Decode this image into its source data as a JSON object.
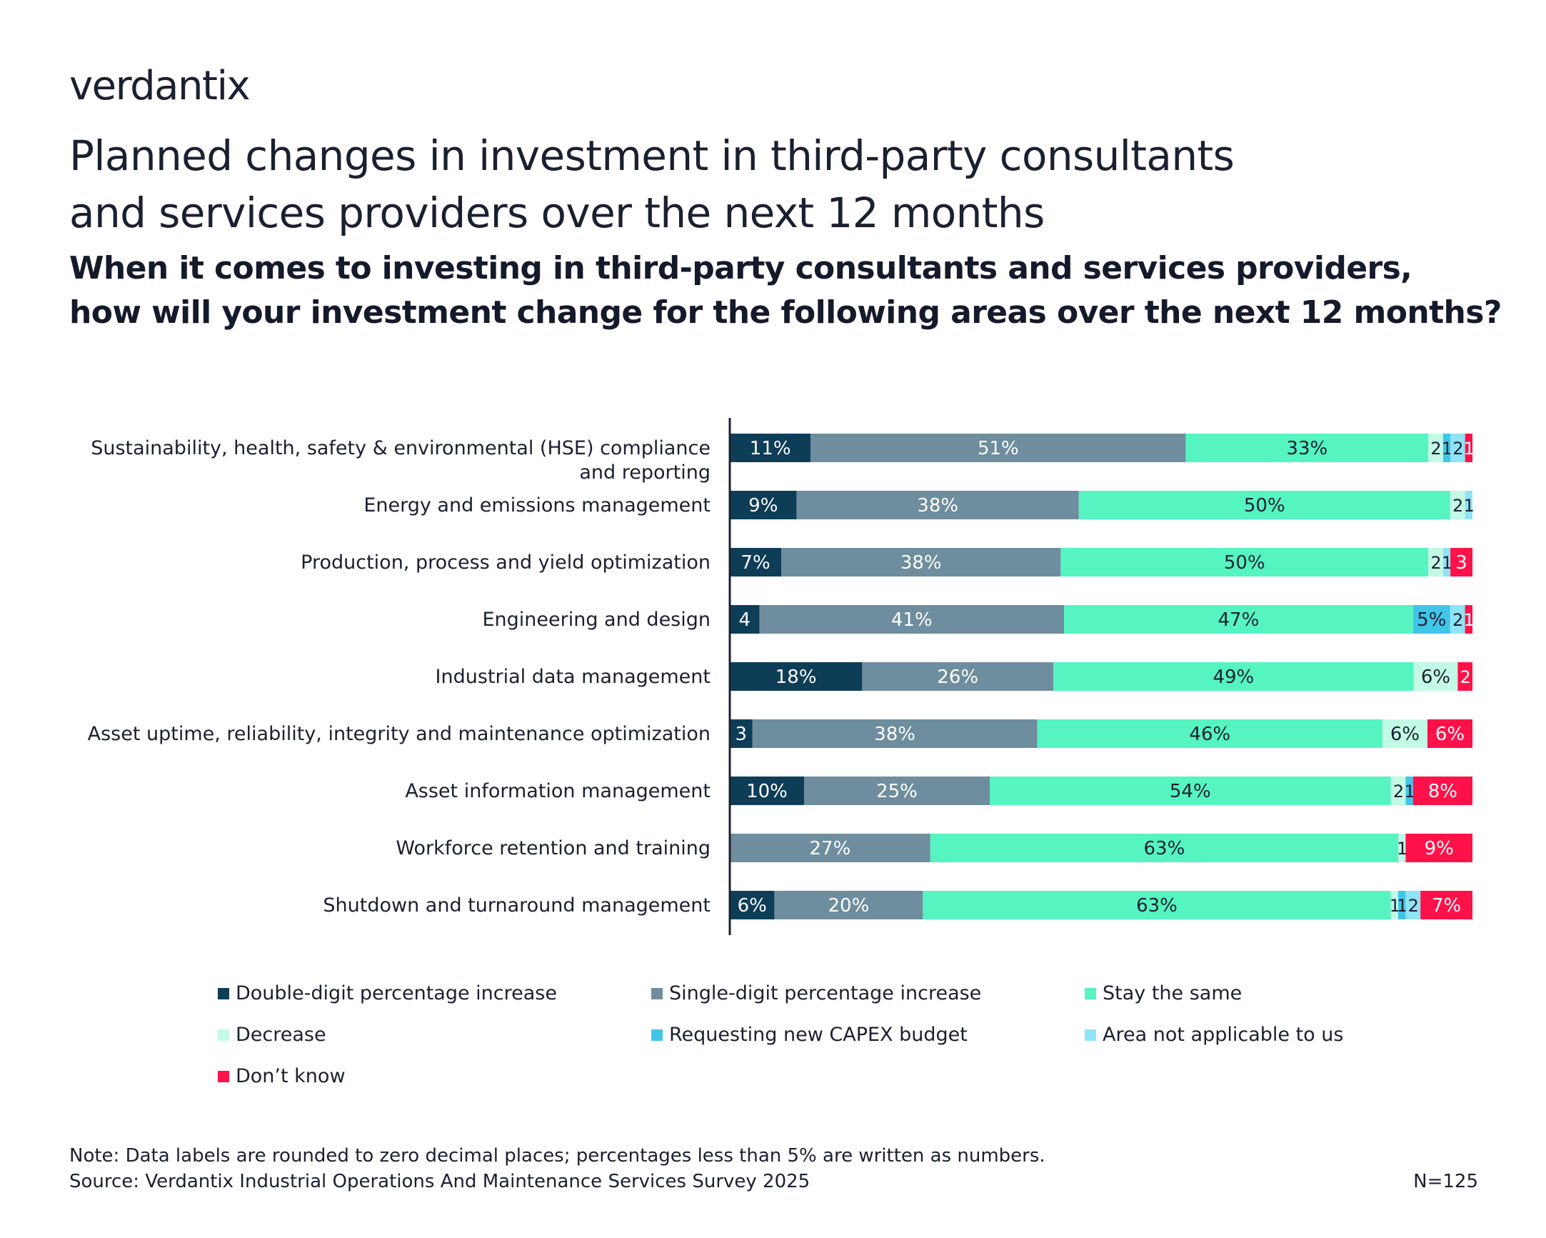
{
  "brand": {
    "logo_text": "verdantix"
  },
  "header": {
    "title_line1": "Planned changes in investment in third-party consultants",
    "title_line2": "and services providers over the next 12 months",
    "subtitle_line1": "When it comes to investing in third-party consultants and services providers,",
    "subtitle_line2": "how will your investment change for the following areas over the next 12 months?"
  },
  "chart_data": {
    "type": "bar",
    "orientation": "horizontal",
    "stacked": true,
    "normalized_to_percent": true,
    "xlim": [
      0,
      100
    ],
    "unit": "%",
    "categories": [
      [
        "Sustainability, health, safety & environmental (HSE) compliance",
        "and reporting"
      ],
      [
        "Energy and emissions management"
      ],
      [
        "Production, process and yield optimization"
      ],
      [
        "Engineering and design"
      ],
      [
        "Industrial data management"
      ],
      [
        "Asset uptime, reliability, integrity and maintenance optimization"
      ],
      [
        "Asset information management"
      ],
      [
        "Workforce retention and training"
      ],
      [
        "Shutdown and turnaround management"
      ]
    ],
    "series": [
      {
        "name": "Double-digit percentage increase",
        "color": "#0e3d58",
        "label_color": "#ffffff",
        "values": [
          11,
          9,
          7,
          4,
          18,
          3,
          10,
          0,
          6
        ],
        "labels": [
          "11%",
          "9%",
          "7%",
          "4",
          "18%",
          "3",
          "10%",
          "",
          "6%"
        ]
      },
      {
        "name": "Single-digit percentage increase",
        "color": "#6e8d9e",
        "label_color": "#ffffff",
        "values": [
          51,
          38,
          38,
          41,
          26,
          38,
          25,
          27,
          20
        ],
        "labels": [
          "51%",
          "38%",
          "38%",
          "41%",
          "26%",
          "38%",
          "25%",
          "27%",
          "20%"
        ]
      },
      {
        "name": "Stay the same",
        "color": "#55f4c1",
        "label_color": "#1b2030",
        "values": [
          33,
          50,
          50,
          47,
          49,
          46,
          54,
          63,
          63
        ],
        "labels": [
          "33%",
          "50%",
          "50%",
          "47%",
          "49%",
          "46%",
          "54%",
          "63%",
          "63%"
        ]
      },
      {
        "name": "Decrease",
        "color": "#c2fae6",
        "label_color": "#1b2030",
        "values": [
          2,
          2,
          2,
          0,
          6,
          6,
          2,
          1,
          1
        ],
        "labels": [
          "2",
          "2",
          "2",
          "",
          "6%",
          "6%",
          "2",
          "1",
          "1"
        ]
      },
      {
        "name": "Requesting new CAPEX budget",
        "color": "#40c5e8",
        "label_color": "#1b2030",
        "values": [
          1,
          0,
          0,
          5,
          0,
          0,
          1,
          0,
          1
        ],
        "labels": [
          "1",
          "",
          "",
          "5%",
          "",
          "",
          "1",
          "",
          "1"
        ]
      },
      {
        "name": "Area not applicable to us",
        "color": "#8ee3f5",
        "label_color": "#1b2030",
        "values": [
          2,
          1,
          1,
          2,
          0,
          0,
          0,
          0,
          2
        ],
        "labels": [
          "2",
          "1",
          "1",
          "2",
          "",
          "",
          "",
          "",
          "2"
        ]
      },
      {
        "name": "Don’t know",
        "color": "#ff1149",
        "label_color": "#ffffff",
        "values": [
          1,
          0,
          3,
          1,
          2,
          6,
          8,
          9,
          7
        ],
        "labels": [
          "1",
          "",
          "3",
          "1",
          "2",
          "6%",
          "8%",
          "9%",
          "7%"
        ]
      }
    ]
  },
  "footer": {
    "note": "Note: Data labels are rounded to zero decimal places; percentages less than 5% are written as numbers.",
    "source": "Source: Verdantix Industrial Operations And Maintenance Services Survey 2025",
    "sample_size": "N=125"
  }
}
